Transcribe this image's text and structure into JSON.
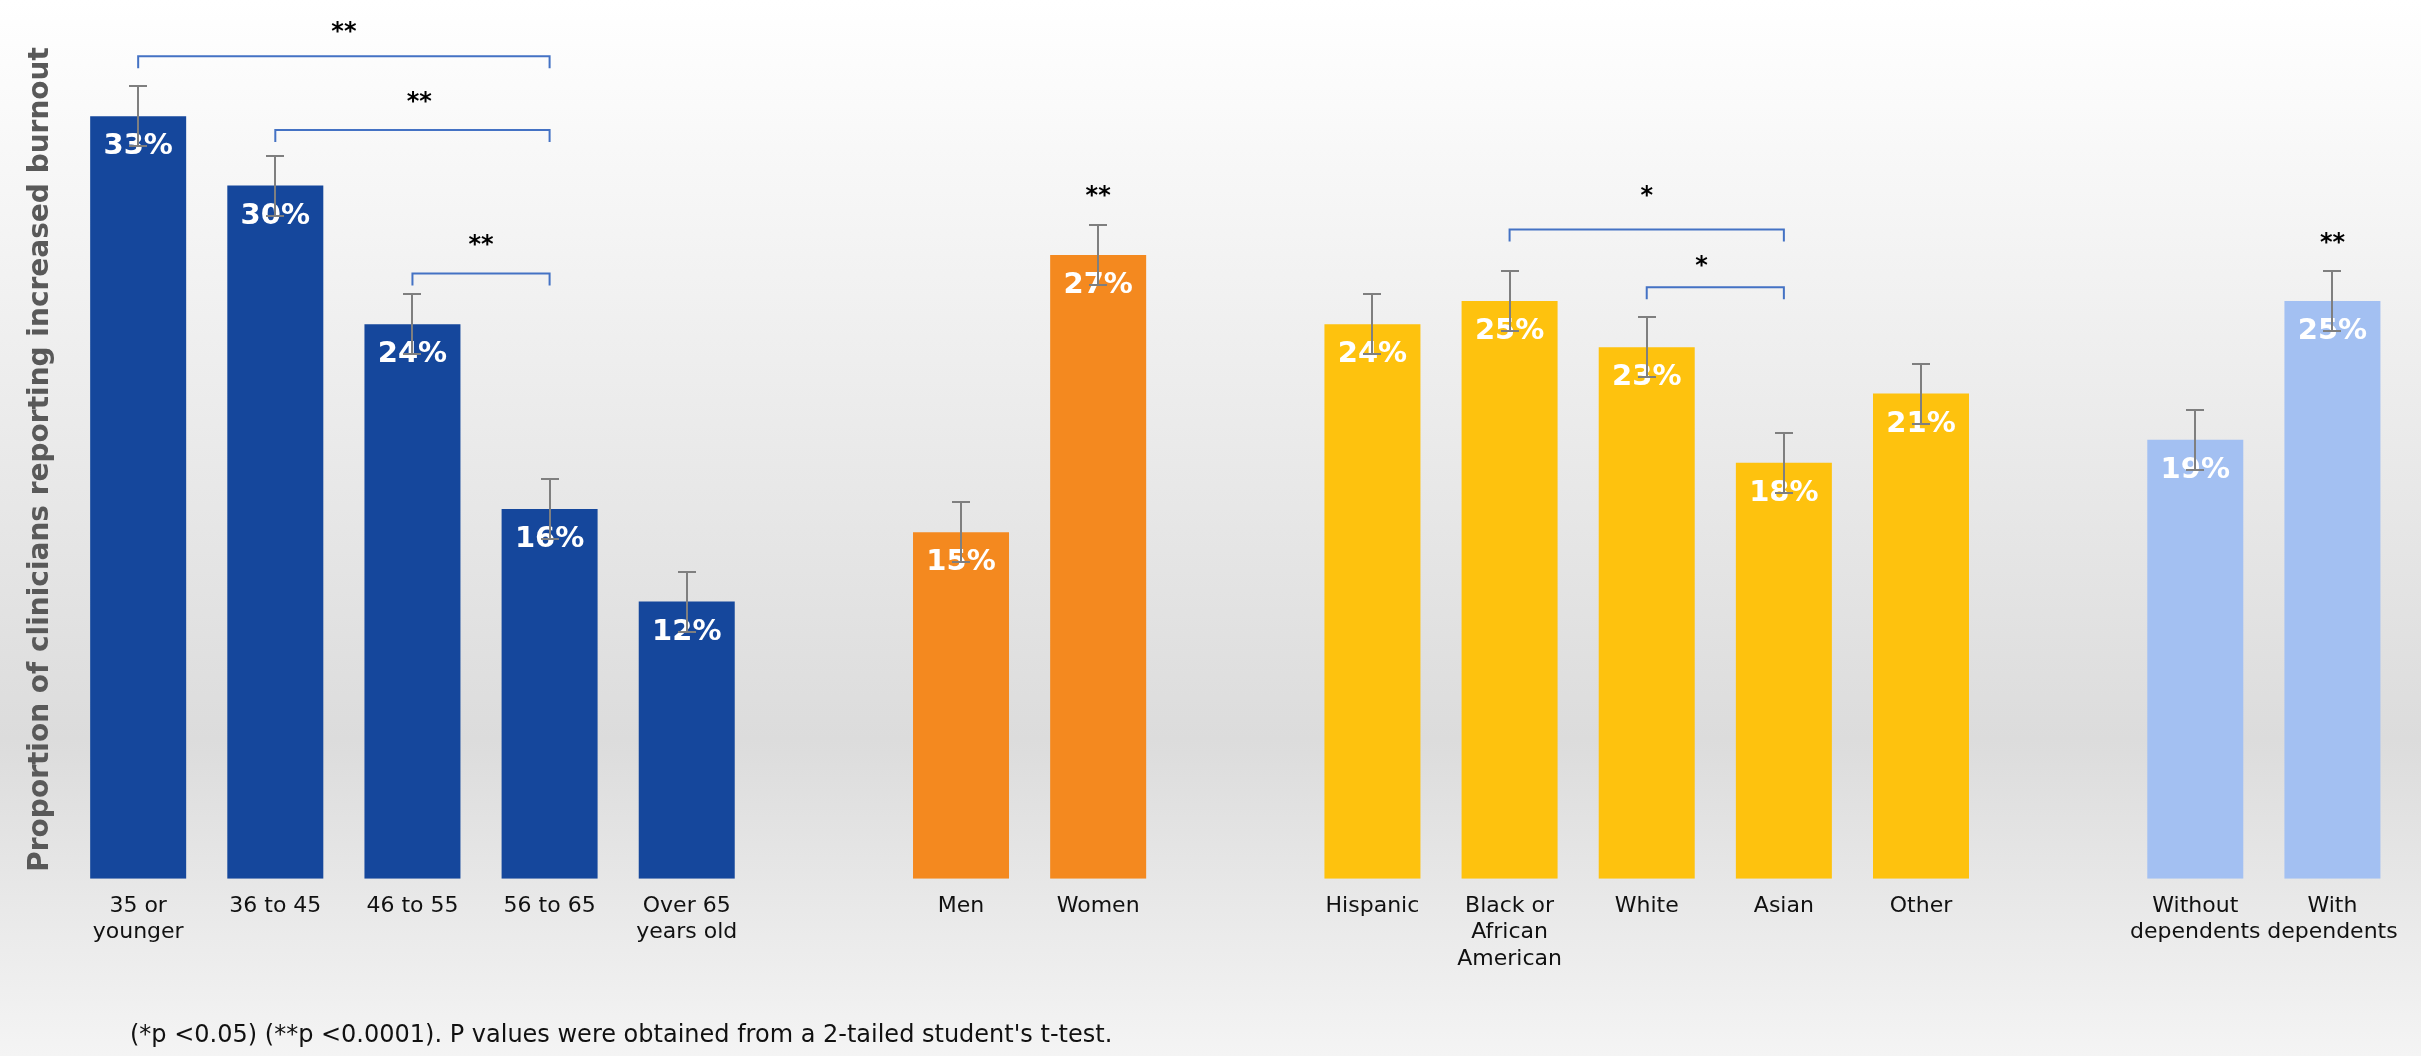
{
  "chart_data": {
    "type": "bar",
    "ylabel": "Proportion of clinicians reporting increased burnout",
    "categories": [
      "35 or younger",
      "36 to 45",
      "46 to 55",
      "56 to 65",
      "Over 65 years old",
      null,
      "Men",
      "Women",
      null,
      "Hispanic",
      "Black or African American",
      "White",
      "Asian",
      "Other",
      null,
      "Without dependents",
      "With dependents"
    ],
    "values": [
      33,
      30,
      24,
      16,
      12,
      null,
      15,
      27,
      null,
      24,
      25,
      23,
      18,
      21,
      null,
      19,
      25
    ],
    "colors": [
      "#15479c",
      "#15479c",
      "#15479c",
      "#15479c",
      "#15479c",
      "#ffffff",
      "#f4891f",
      "#f4891f",
      "#ffffff",
      "#fec20e",
      "#fec20e",
      "#fec20e",
      "#fec20e",
      "#fec20e",
      "#ffffff",
      "#a3c0f2",
      "#a3c0f2"
    ],
    "value_labels": [
      "33%",
      "30%",
      "24%",
      "16%",
      "12%",
      null,
      "15%",
      "27%",
      null,
      "24%",
      "25%",
      "23%",
      "18%",
      "21%",
      null,
      "19%",
      "25%"
    ],
    "grid": false,
    "legend": false,
    "annotations": [
      "**",
      "**",
      "**",
      "**",
      "*",
      "*",
      "**",
      "(*p <0.05) (**p <0.0001). P values were obtained from a 2-tailed student's t-test."
    ]
  }
}
